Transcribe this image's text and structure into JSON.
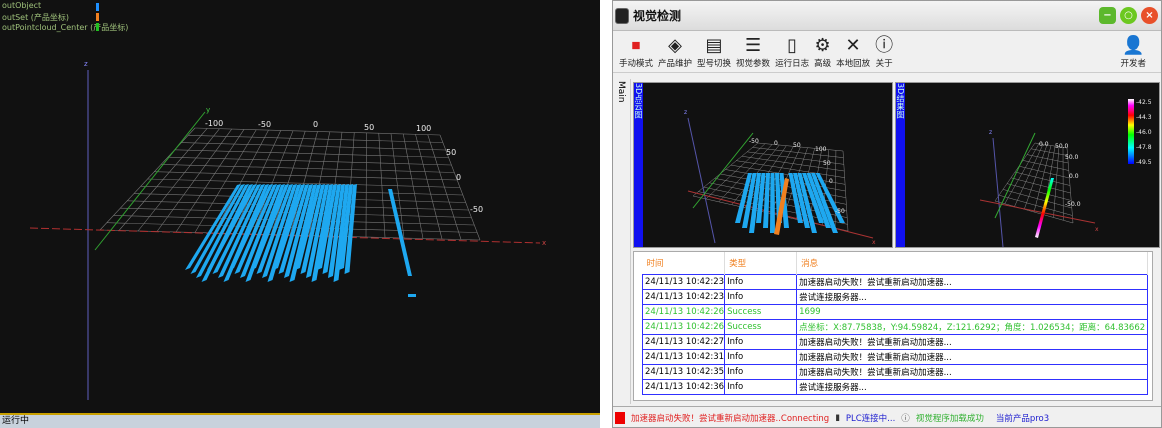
{
  "left_view": {
    "legend": [
      {
        "label": "outObject",
        "color": "#1e90ff"
      },
      {
        "label": "outSet (产品坐标)",
        "color": "#f08020"
      },
      {
        "label": "outPointcloud_Center (产品坐标)",
        "color": "#20c020"
      }
    ],
    "x_ticks": [
      "-100",
      "-50",
      "0",
      "50",
      "100"
    ],
    "y_ticks": [
      "50",
      "0",
      "-50"
    ],
    "axis_x": "x",
    "axis_y": "y",
    "axis_z": "z",
    "status": "运行中",
    "point_color": "#1ea8f0"
  },
  "window": {
    "title": "视觉检测",
    "toolbar": [
      {
        "label": "手动模式",
        "icon": "stop-icon"
      },
      {
        "label": "产品维护",
        "icon": "layers-icon"
      },
      {
        "label": "型号切换",
        "icon": "switch-icon"
      },
      {
        "label": "视觉参数",
        "icon": "sliders-icon"
      },
      {
        "label": "运行日志",
        "icon": "log-icon"
      },
      {
        "label": "高级",
        "icon": "gear-icon"
      },
      {
        "label": "本地回放",
        "icon": "tools-icon"
      },
      {
        "label": "关于",
        "icon": "info-icon"
      }
    ],
    "user": {
      "label": "开发者",
      "icon": "user-icon"
    },
    "tab": "Main",
    "plot1": {
      "label": "3D点云图",
      "x_ticks": [
        "-50",
        "0",
        "50",
        "100"
      ],
      "y_ticks": [
        "50",
        "0",
        "-50"
      ],
      "axis_x": "x",
      "axis_z": "z"
    },
    "plot2": {
      "label": "3D结果图",
      "ticks": [
        "0.0",
        "50.0",
        "50.0",
        "0.0",
        "-50.0"
      ],
      "axis_x": "x",
      "axis_z": "z",
      "colorbar": [
        "-42.5",
        "-44.3",
        "-46.0",
        "-47.8",
        "-49.5"
      ]
    },
    "log": {
      "headers": [
        "时间",
        "类型",
        "消息"
      ],
      "rows": [
        {
          "time": "24/11/13 10:42:23",
          "type": "Info",
          "msg": "加速器启动失败！尝试重新启动加速器..."
        },
        {
          "time": "24/11/13 10:42:23",
          "type": "Info",
          "msg": "尝试连接服务器..."
        },
        {
          "time": "24/11/13 10:42:26",
          "type": "Success",
          "msg": "1699"
        },
        {
          "time": "24/11/13 10:42:26",
          "type": "Success",
          "msg": "点坐标：X:87.75838，Y:94.59824，Z:121.6292；角度：1.026534；距离：64.83662"
        },
        {
          "time": "24/11/13 10:42:27",
          "type": "Info",
          "msg": "加速器启动失败！尝试重新启动加速器..."
        },
        {
          "time": "24/11/13 10:42:31",
          "type": "Info",
          "msg": "加速器启动失败！尝试重新启动加速器..."
        },
        {
          "time": "24/11/13 10:42:35",
          "type": "Info",
          "msg": "加速器启动失败！尝试重新启动加速器..."
        },
        {
          "time": "24/11/13 10:42:36",
          "type": "Info",
          "msg": "尝试连接服务器..."
        }
      ]
    },
    "status": {
      "error": "加速器启动失败！尝试重新启动加速器..Connecting",
      "plc": "PLC连接中...",
      "vision": "视觉程序加载成功",
      "product": "当前产品pro3"
    }
  }
}
